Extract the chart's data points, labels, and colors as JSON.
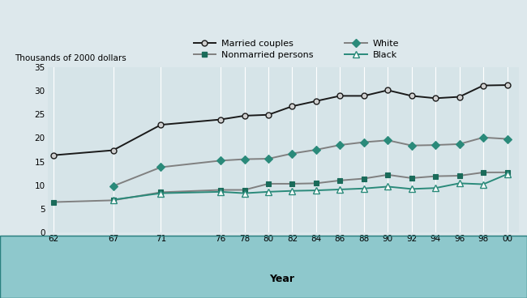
{
  "years": [
    62,
    67,
    71,
    76,
    78,
    80,
    82,
    84,
    86,
    88,
    90,
    92,
    94,
    96,
    98,
    0
  ],
  "married_couples": [
    16.339,
    17.39,
    22.781,
    23.9,
    24.7,
    24.9,
    26.7,
    27.8,
    28.9,
    28.9,
    30.1,
    28.9,
    28.4,
    28.7,
    31.1,
    31.188
  ],
  "nonmarried_persons": [
    6.422,
    6.8,
    8.5,
    9.0,
    9.0,
    10.3,
    10.3,
    10.4,
    11.0,
    11.4,
    12.2,
    11.5,
    11.9,
    12.0,
    12.7,
    12.715
  ],
  "white": [
    null,
    9.806,
    13.802,
    15.2,
    15.5,
    15.6,
    16.7,
    17.5,
    18.5,
    19.1,
    19.5,
    18.4,
    18.5,
    18.7,
    20.1,
    19.79
  ],
  "black": [
    null,
    6.929,
    8.3,
    8.6,
    8.3,
    8.6,
    8.8,
    8.9,
    9.1,
    9.3,
    9.7,
    9.2,
    9.4,
    10.4,
    10.2,
    12.333
  ],
  "ylabel": "Thousands of 2000 dollars",
  "xlabel": "Year",
  "ylim": [
    0,
    35
  ],
  "yticks": [
    0,
    5,
    10,
    15,
    20,
    25,
    30,
    35
  ],
  "bg_plot": "#d6e4e8",
  "bg_xstrip": "#8ec8cc",
  "bg_figure": "#dde8ec",
  "grid_color": "#ffffff",
  "married_line_color": "#1a1a1a",
  "married_marker_face": "#c8c8c8",
  "nonmarried_line_color": "#808080",
  "nonmarried_marker_color": "#1a6b5a",
  "white_line_color": "#808080",
  "white_marker_color": "#2a8a7a",
  "black_line_color": "#2a8a7a",
  "black_marker_face": "#ffffff",
  "black_marker_edge": "#2a8a7a"
}
